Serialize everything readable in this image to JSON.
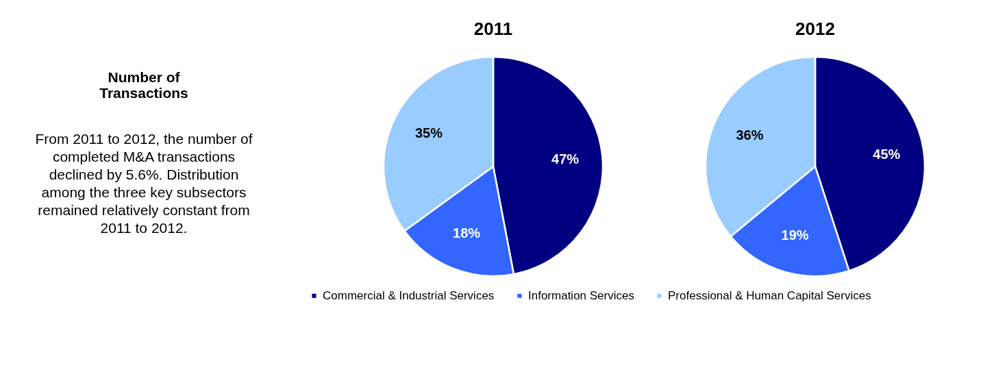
{
  "chart_data": [
    {
      "type": "other",
      "title": "Number of Transactions",
      "annotations": [
        "From 2011 to 2012, the number of completed M&A transactions declined by 5.6%. Distribution among the three key subsectors remained relatively constant from 2011 to 2012."
      ]
    },
    {
      "type": "pie",
      "title": "2011",
      "categories": [
        "Commercial & Industrial Services",
        "Information Services",
        "Professional & Human Capital Services"
      ],
      "values": [
        47,
        18,
        35
      ],
      "value_labels": [
        "47%",
        "18%",
        "35%"
      ],
      "colors": [
        "#000080",
        "#3366ff",
        "#99ccff"
      ],
      "legend": "bottom"
    },
    {
      "type": "pie",
      "title": "2012",
      "categories": [
        null,
        null,
        null
      ],
      "values": [
        45,
        19,
        36
      ],
      "value_labels": [
        "45%",
        "19%",
        "36%"
      ],
      "colors": [
        "#000080",
        "#3366ff",
        "#99ccff"
      ]
    }
  ]
}
